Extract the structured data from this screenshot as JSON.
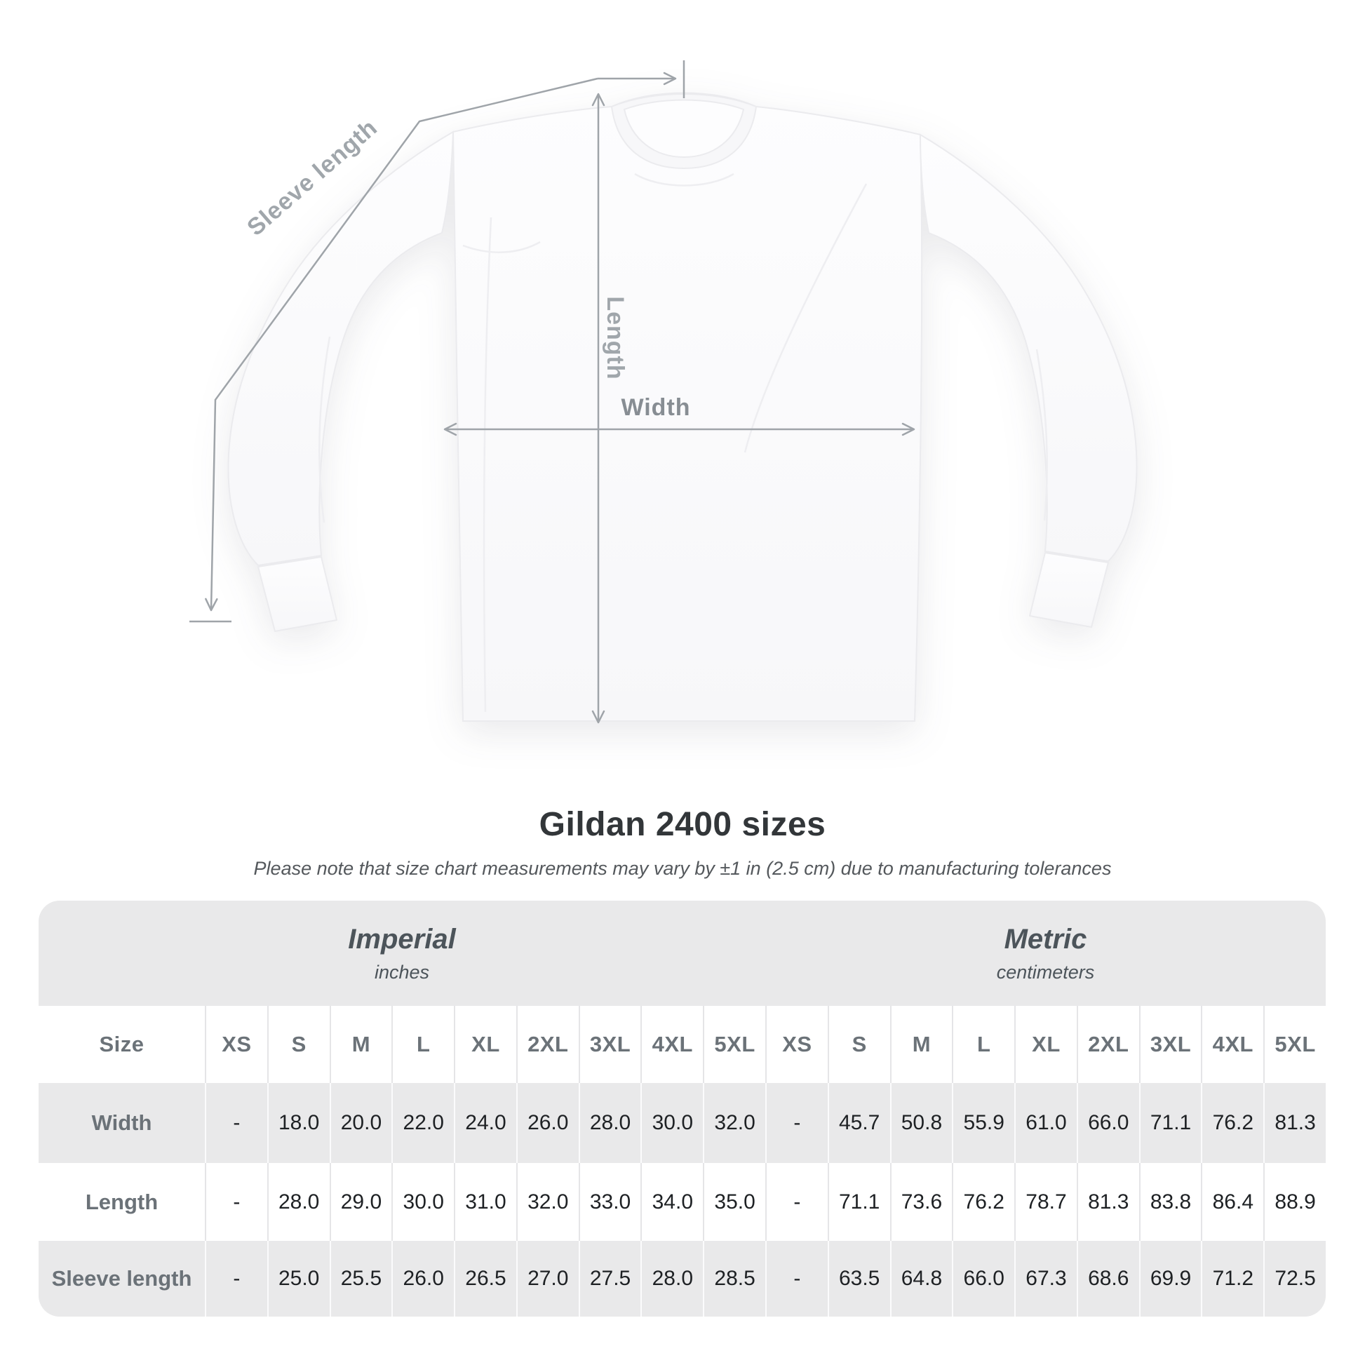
{
  "title": "Gildan 2400 sizes",
  "subtitle": "Please note that size chart measurements may vary by ±1 in (2.5 cm) due to manufacturing tolerances",
  "diagram": {
    "sleeve_length_label": "Sleeve length",
    "length_label": "Length",
    "width_label": "Width"
  },
  "table": {
    "systems": [
      {
        "name": "Imperial",
        "unit": "inches"
      },
      {
        "name": "Metric",
        "unit": "centimeters"
      }
    ],
    "size_column_header": "Size",
    "sizes": [
      "XS",
      "S",
      "M",
      "L",
      "XL",
      "2XL",
      "3XL",
      "4XL",
      "5XL"
    ],
    "rows": [
      {
        "label": "Width",
        "imperial": [
          "-",
          "18.0",
          "20.0",
          "22.0",
          "24.0",
          "26.0",
          "28.0",
          "30.0",
          "32.0"
        ],
        "metric": [
          "-",
          "45.7",
          "50.8",
          "55.9",
          "61.0",
          "66.0",
          "71.1",
          "76.2",
          "81.3"
        ]
      },
      {
        "label": "Length",
        "imperial": [
          "-",
          "28.0",
          "29.0",
          "30.0",
          "31.0",
          "32.0",
          "33.0",
          "34.0",
          "35.0"
        ],
        "metric": [
          "-",
          "71.1",
          "73.6",
          "76.2",
          "78.7",
          "81.3",
          "83.8",
          "86.4",
          "88.9"
        ]
      },
      {
        "label": "Sleeve length",
        "imperial": [
          "-",
          "25.0",
          "25.5",
          "26.0",
          "26.5",
          "27.0",
          "27.5",
          "28.0",
          "28.5"
        ],
        "metric": [
          "-",
          "63.5",
          "64.8",
          "66.0",
          "67.3",
          "68.6",
          "69.9",
          "71.2",
          "72.5"
        ]
      }
    ]
  },
  "colors": {
    "measure_line": "#9fa4a9",
    "diagram_label": "#a0a6ab",
    "band_bg": "#e9e9ea",
    "shaded_row": "#e9e9ea",
    "number_text": "#1e2124",
    "header_text": "#6b7278",
    "title_text": "#323639"
  }
}
